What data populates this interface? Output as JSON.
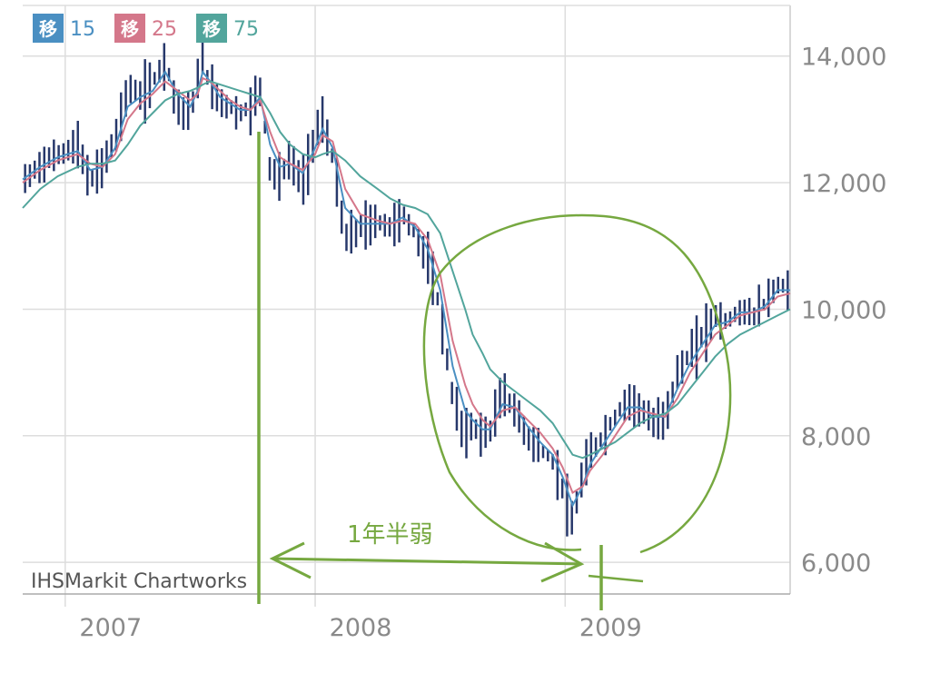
{
  "chart_data": {
    "type": "line",
    "title": "",
    "xlabel": "",
    "ylabel": "",
    "x_ticks": [
      "2007",
      "2008",
      "2009"
    ],
    "y_ticks": [
      6000,
      8000,
      10000,
      12000,
      14000
    ],
    "y_tick_labels": [
      "6,000",
      "8,000",
      "10,000",
      "12,000",
      "14,000"
    ],
    "ylim": [
      5500,
      14800
    ],
    "xlim": [
      2006.83,
      2009.9
    ],
    "grid": true,
    "legend_position": "top-left",
    "watermark": "IHSMarkit Chartworks",
    "price_series": {
      "name": "",
      "color": "#27386b",
      "x": [
        2006.83,
        2006.9,
        2006.97,
        2007.05,
        2007.1,
        2007.15,
        2007.2,
        2007.25,
        2007.3,
        2007.35,
        2007.4,
        2007.45,
        2007.5,
        2007.53,
        2007.55,
        2007.58,
        2007.62,
        2007.66,
        2007.7,
        2007.74,
        2007.78,
        2007.82,
        2007.86,
        2007.9,
        2007.95,
        2008.0,
        2008.03,
        2008.07,
        2008.12,
        2008.18,
        2008.25,
        2008.3,
        2008.35,
        2008.4,
        2008.45,
        2008.5,
        2008.55,
        2008.6,
        2008.63,
        2008.67,
        2008.7,
        2008.75,
        2008.8,
        2008.85,
        2008.9,
        2008.95,
        2008.99,
        2009.03,
        2009.07,
        2009.1,
        2009.15,
        2009.2,
        2009.25,
        2009.3,
        2009.35,
        2009.4,
        2009.45,
        2009.5,
        2009.55,
        2009.6,
        2009.65,
        2009.7,
        2009.75,
        2009.8,
        2009.85,
        2009.9
      ],
      "values": [
        12000,
        12300,
        12450,
        12600,
        12000,
        12300,
        12700,
        13500,
        13400,
        13600,
        13950,
        13200,
        13100,
        13600,
        14000,
        13500,
        13300,
        13200,
        13100,
        13200,
        13500,
        12200,
        12100,
        12400,
        12000,
        12800,
        13000,
        12400,
        11100,
        11300,
        11400,
        11300,
        11500,
        11200,
        10800,
        10000,
        8600,
        8000,
        8200,
        8000,
        8100,
        8700,
        8400,
        8000,
        7800,
        7600,
        7200,
        6600,
        7400,
        7700,
        8000,
        8300,
        8600,
        8450,
        8200,
        8300,
        9000,
        9300,
        9600,
        9900,
        9800,
        10000,
        9900,
        10100,
        10400,
        10300
      ]
    },
    "series": [
      {
        "name": "15",
        "legend_label": "移",
        "color": "#4a8fc2",
        "values": [
          12050,
          12250,
          12400,
          12500,
          12200,
          12250,
          12550,
          13200,
          13350,
          13450,
          13750,
          13400,
          13200,
          13450,
          13750,
          13600,
          13350,
          13250,
          13150,
          13150,
          13350,
          12600,
          12250,
          12300,
          12150,
          12550,
          12850,
          12550,
          11600,
          11350,
          11350,
          11350,
          11450,
          11300,
          10950,
          10300,
          9100,
          8400,
          8250,
          8100,
          8100,
          8500,
          8450,
          8150,
          7900,
          7700,
          7350,
          6900,
          7200,
          7550,
          7850,
          8150,
          8450,
          8450,
          8300,
          8300,
          8750,
          9150,
          9450,
          9750,
          9800,
          9950,
          9950,
          10050,
          10300,
          10300
        ]
      },
      {
        "name": "25",
        "legend_label": "移",
        "color": "#d4778a",
        "values": [
          12000,
          12200,
          12350,
          12450,
          12300,
          12250,
          12450,
          13000,
          13250,
          13400,
          13600,
          13450,
          13300,
          13400,
          13650,
          13600,
          13450,
          13300,
          13200,
          13150,
          13300,
          12800,
          12400,
          12300,
          12200,
          12450,
          12750,
          12650,
          11900,
          11500,
          11400,
          11350,
          11400,
          11350,
          11100,
          10550,
          9500,
          8800,
          8500,
          8250,
          8150,
          8400,
          8450,
          8250,
          8050,
          7800,
          7500,
          7100,
          7200,
          7450,
          7700,
          8000,
          8300,
          8400,
          8350,
          8300,
          8600,
          9000,
          9300,
          9600,
          9750,
          9900,
          9950,
          10000,
          10200,
          10250
        ]
      },
      {
        "name": "75",
        "legend_label": "移",
        "color": "#52a59c",
        "values": [
          11600,
          11900,
          12100,
          12250,
          12300,
          12300,
          12350,
          12600,
          12900,
          13100,
          13300,
          13400,
          13450,
          13500,
          13550,
          13600,
          13550,
          13500,
          13450,
          13400,
          13350,
          13100,
          12800,
          12600,
          12450,
          12400,
          12450,
          12500,
          12350,
          12100,
          11900,
          11750,
          11650,
          11600,
          11500,
          11200,
          10600,
          10000,
          9600,
          9300,
          9050,
          8850,
          8700,
          8550,
          8400,
          8200,
          7950,
          7700,
          7650,
          7700,
          7800,
          7900,
          8050,
          8200,
          8300,
          8350,
          8500,
          8750,
          9000,
          9250,
          9450,
          9600,
          9700,
          9800,
          9900,
          10000
        ]
      }
    ],
    "annotations": {
      "text": "1年半弱",
      "color": "#76a840"
    }
  }
}
